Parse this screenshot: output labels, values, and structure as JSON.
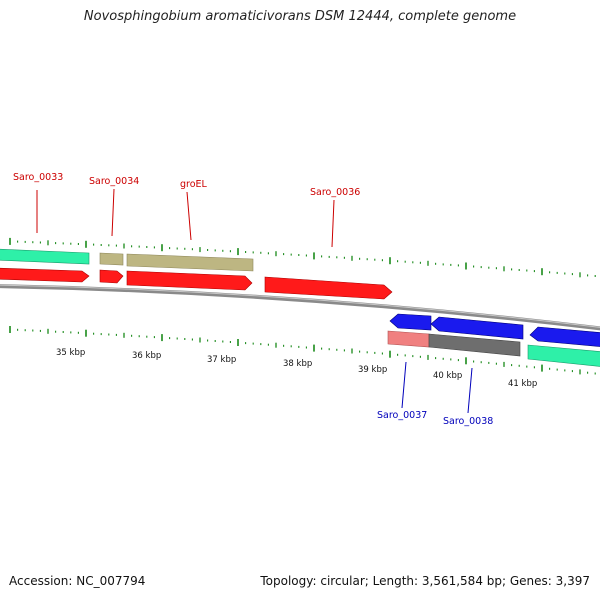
{
  "title": "Novosphingobium aromaticivorans DSM 12444, complete genome",
  "footer": {
    "accession": "Accession: NC_007794",
    "stats": "Topology: circular; Length: 3,561,584 bp; Genes: 3,397"
  },
  "colors": {
    "forward_label": "#cc0000",
    "reverse_label": "#0000bb",
    "gene_red": "#ff1a1a",
    "gene_blue": "#1a1aee",
    "gene_teal": "#2ef0a8",
    "gene_olive": "#bdb682",
    "gene_pink": "#f08080",
    "gene_gray": "#6e6e6e",
    "backbone": "#8a8a8a",
    "tick": "#1a8a1a"
  },
  "kbp_ticks": [
    "35 kbp",
    "36 kbp",
    "37 kbp",
    "38 kbp",
    "39 kbp",
    "40 kbp",
    "41 kbp"
  ],
  "gene_labels": {
    "saro_0033": "Saro_0033",
    "saro_0034": "Saro_0034",
    "groel": "groEL",
    "saro_0036": "Saro_0036",
    "saro_0037": "Saro_0037",
    "saro_0038": "Saro_0038"
  }
}
